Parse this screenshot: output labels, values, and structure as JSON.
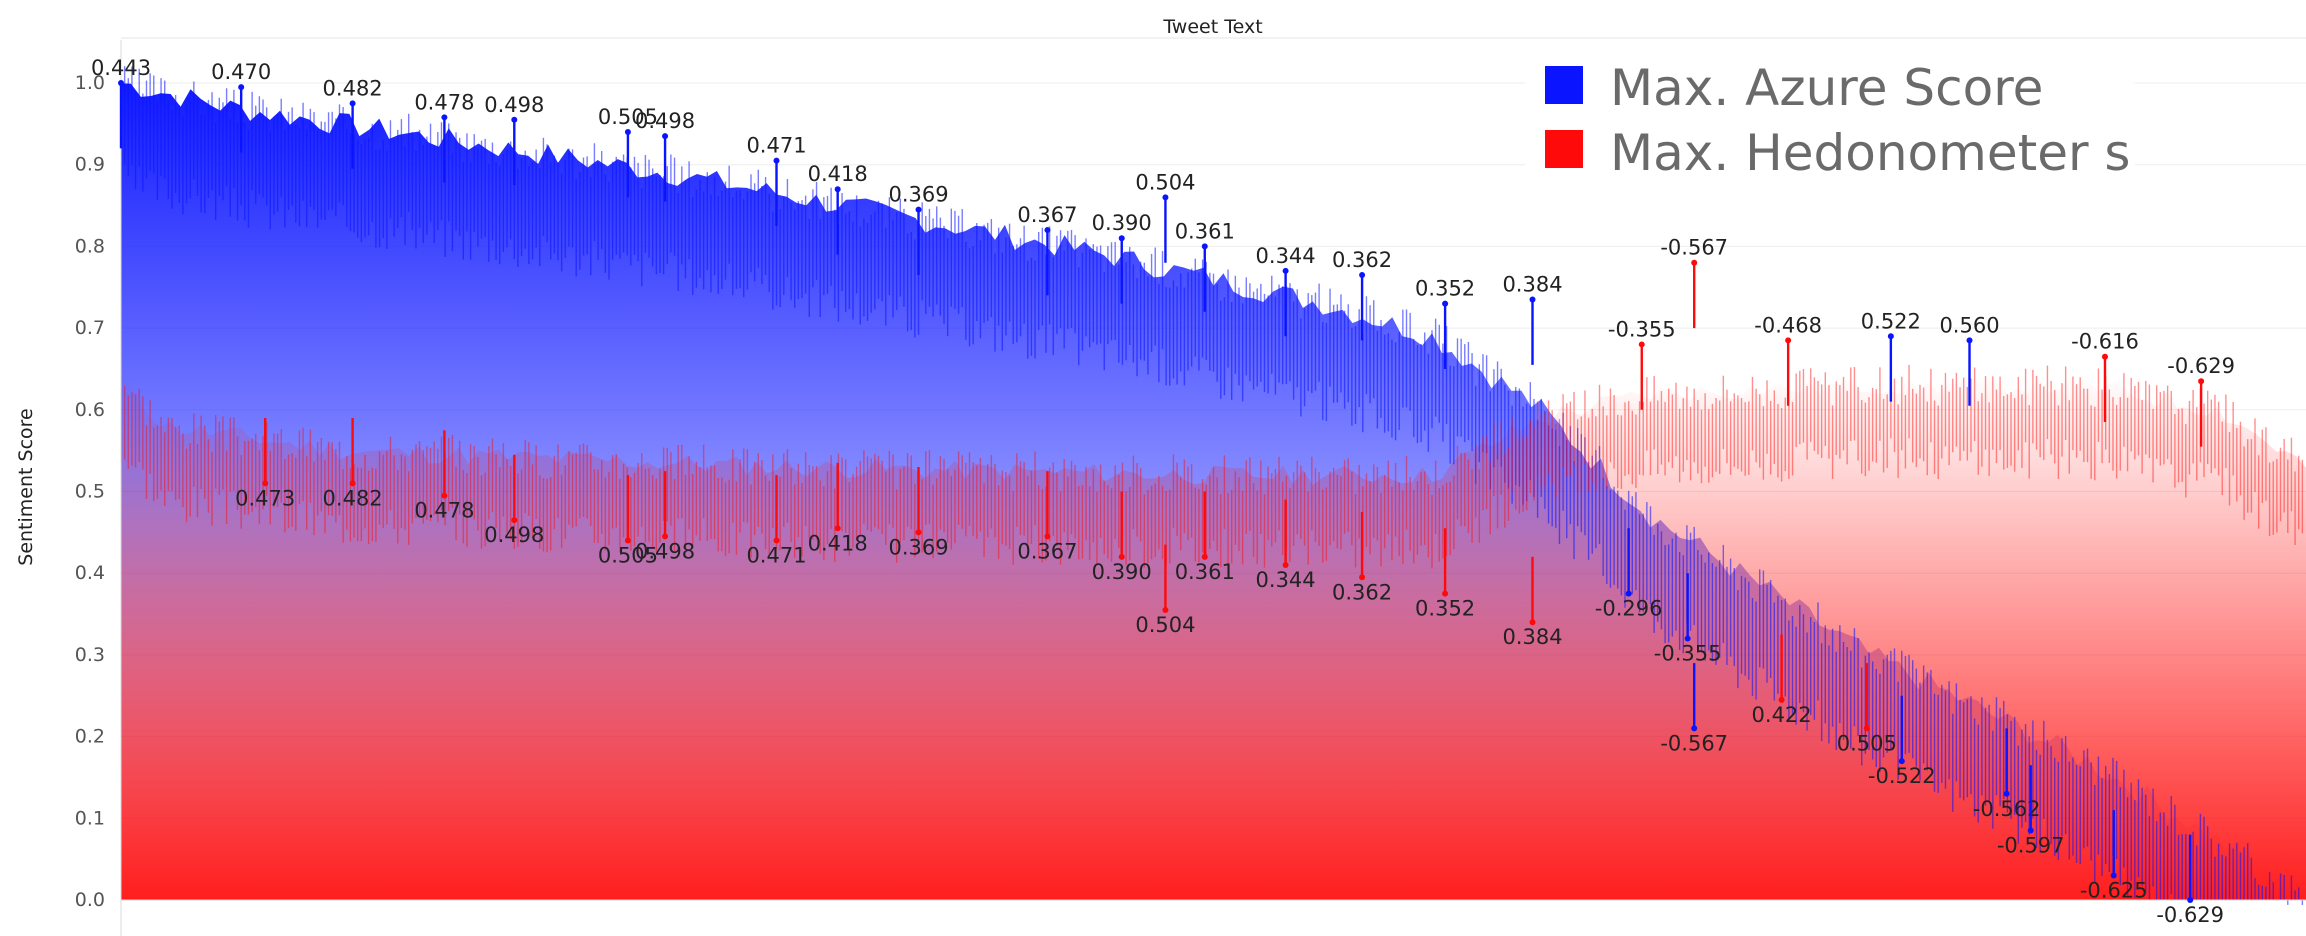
{
  "chart_data": {
    "type": "bar",
    "title": "Tweet Text",
    "xlabel": "",
    "ylabel": "Sentiment Score",
    "ylim": [
      0,
      1.0
    ],
    "y_ticks": [
      "0.0",
      "0.1",
      "0.2",
      "0.3",
      "0.4",
      "0.5",
      "0.6",
      "0.7",
      "0.8",
      "0.9",
      "1.0"
    ],
    "grid": "horizontal",
    "legend_position": "top-right",
    "series": [
      {
        "name": "Max. Azure Score",
        "color": "#0a14ff",
        "trend": [
          [
            0.0,
            1.0
          ],
          [
            0.05,
            0.97
          ],
          [
            0.15,
            0.93
          ],
          [
            0.25,
            0.89
          ],
          [
            0.35,
            0.84
          ],
          [
            0.45,
            0.79
          ],
          [
            0.55,
            0.73
          ],
          [
            0.6,
            0.69
          ],
          [
            0.65,
            0.6
          ],
          [
            0.7,
            0.47
          ],
          [
            0.8,
            0.3
          ],
          [
            0.9,
            0.17
          ],
          [
            0.95,
            0.09
          ],
          [
            1.0,
            0.0
          ]
        ]
      },
      {
        "name": "Max. Hedonometer s",
        "color": "#ff0a0a",
        "trend": [
          [
            0.0,
            0.64
          ],
          [
            0.02,
            0.58
          ],
          [
            0.1,
            0.55
          ],
          [
            0.3,
            0.53
          ],
          [
            0.5,
            0.52
          ],
          [
            0.6,
            0.52
          ],
          [
            0.65,
            0.59
          ],
          [
            0.7,
            0.62
          ],
          [
            0.8,
            0.63
          ],
          [
            0.9,
            0.63
          ],
          [
            0.96,
            0.6
          ],
          [
            1.0,
            0.53
          ]
        ]
      }
    ],
    "upper_labels": [
      {
        "text": "0.443",
        "x": 0.0,
        "y": 1.0
      },
      {
        "text": "0.470",
        "x": 0.055,
        "y": 0.995
      },
      {
        "text": "0.482",
        "x": 0.106,
        "y": 0.975
      },
      {
        "text": "0.478",
        "x": 0.148,
        "y": 0.958
      },
      {
        "text": "0.498",
        "x": 0.18,
        "y": 0.955
      },
      {
        "text": "0.505",
        "x": 0.232,
        "y": 0.94
      },
      {
        "text": "0.498",
        "x": 0.249,
        "y": 0.935
      },
      {
        "text": "0.471",
        "x": 0.3,
        "y": 0.905
      },
      {
        "text": "0.418",
        "x": 0.328,
        "y": 0.87
      },
      {
        "text": "0.369",
        "x": 0.365,
        "y": 0.845
      },
      {
        "text": "0.367",
        "x": 0.424,
        "y": 0.82
      },
      {
        "text": "0.390",
        "x": 0.458,
        "y": 0.81
      },
      {
        "text": "0.504",
        "x": 0.478,
        "y": 0.86
      },
      {
        "text": "0.361",
        "x": 0.496,
        "y": 0.8
      },
      {
        "text": "0.344",
        "x": 0.533,
        "y": 0.77
      },
      {
        "text": "0.362",
        "x": 0.568,
        "y": 0.765
      },
      {
        "text": "0.352",
        "x": 0.606,
        "y": 0.73
      },
      {
        "text": "0.384",
        "x": 0.646,
        "y": 0.735
      },
      {
        "text": "-0.567",
        "x": 0.72,
        "y": 0.78
      },
      {
        "text": "-0.355",
        "x": 0.696,
        "y": 0.68
      },
      {
        "text": "-0.468",
        "x": 0.763,
        "y": 0.685
      },
      {
        "text": "0.522",
        "x": 0.81,
        "y": 0.69
      },
      {
        "text": "0.560",
        "x": 0.846,
        "y": 0.685
      },
      {
        "text": "-0.616",
        "x": 0.908,
        "y": 0.665
      },
      {
        "text": "-0.629",
        "x": 0.952,
        "y": 0.635
      }
    ],
    "lower_labels": [
      {
        "text": "0.473",
        "x": 0.066,
        "y": 0.51
      },
      {
        "text": "0.482",
        "x": 0.106,
        "y": 0.51
      },
      {
        "text": "0.478",
        "x": 0.148,
        "y": 0.495
      },
      {
        "text": "0.498",
        "x": 0.18,
        "y": 0.465
      },
      {
        "text": "0.505",
        "x": 0.232,
        "y": 0.44
      },
      {
        "text": "0.498",
        "x": 0.249,
        "y": 0.445
      },
      {
        "text": "0.471",
        "x": 0.3,
        "y": 0.44
      },
      {
        "text": "0.418",
        "x": 0.328,
        "y": 0.455
      },
      {
        "text": "0.369",
        "x": 0.365,
        "y": 0.45
      },
      {
        "text": "0.367",
        "x": 0.424,
        "y": 0.445
      },
      {
        "text": "0.390",
        "x": 0.458,
        "y": 0.42
      },
      {
        "text": "0.504",
        "x": 0.478,
        "y": 0.355
      },
      {
        "text": "0.361",
        "x": 0.496,
        "y": 0.42
      },
      {
        "text": "0.344",
        "x": 0.533,
        "y": 0.41
      },
      {
        "text": "0.362",
        "x": 0.568,
        "y": 0.395
      },
      {
        "text": "0.352",
        "x": 0.606,
        "y": 0.375
      },
      {
        "text": "0.384",
        "x": 0.646,
        "y": 0.34
      },
      {
        "text": "-0.296",
        "x": 0.69,
        "y": 0.375
      },
      {
        "text": "-0.355",
        "x": 0.717,
        "y": 0.32
      },
      {
        "text": "-0.567",
        "x": 0.72,
        "y": 0.21
      },
      {
        "text": "0.422",
        "x": 0.76,
        "y": 0.245
      },
      {
        "text": "0.505",
        "x": 0.799,
        "y": 0.21
      },
      {
        "text": "-0.522",
        "x": 0.815,
        "y": 0.17
      },
      {
        "text": "-0.562",
        "x": 0.863,
        "y": 0.13
      },
      {
        "text": "-0.597",
        "x": 0.874,
        "y": 0.085
      },
      {
        "text": "-0.625",
        "x": 0.912,
        "y": 0.03
      },
      {
        "text": "-0.629",
        "x": 0.947,
        "y": 0.0
      }
    ]
  }
}
